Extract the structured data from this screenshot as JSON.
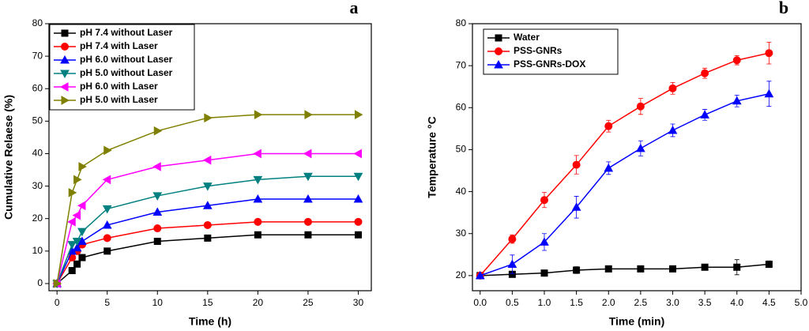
{
  "chart_data": [
    {
      "type": "line",
      "panel_label": "a",
      "x_label": "Time (h)",
      "y_label": "Cumulative Relaese (%)",
      "xlim": [
        -0.8,
        31.3
      ],
      "ylim": [
        -2.2,
        80
      ],
      "xticks": [
        0,
        5,
        10,
        15,
        20,
        25,
        30
      ],
      "yticks": [
        0,
        10,
        20,
        30,
        40,
        50,
        60,
        70,
        80
      ],
      "legend": "upper left",
      "x": [
        0,
        1.5,
        2,
        2.5,
        5,
        10,
        15,
        20,
        25,
        30
      ],
      "series": [
        {
          "name": "pH 7.4 without Laser",
          "color": "#000000",
          "marker": "square",
          "values": [
            0,
            4,
            6,
            8,
            10,
            13,
            14,
            15,
            15,
            15
          ]
        },
        {
          "name": "pH 7.4 with Laser",
          "color": "#ff0000",
          "marker": "circle",
          "values": [
            0,
            8,
            10,
            12,
            14,
            17,
            18,
            19,
            19,
            19
          ]
        },
        {
          "name": "pH 6.0 without Laser",
          "color": "#0000ff",
          "marker": "triangle-up",
          "values": [
            0,
            10,
            11,
            13,
            18,
            22,
            24,
            26,
            26,
            26
          ]
        },
        {
          "name": "pH 5.0 without Laser",
          "color": "#008080",
          "marker": "triangle-down",
          "values": [
            0,
            12,
            13,
            16,
            23,
            27,
            30,
            32,
            33,
            33
          ]
        },
        {
          "name": "pH 6.0 with Laser",
          "color": "#ff00ff",
          "marker": "triangle-left",
          "values": [
            0,
            19,
            21,
            24,
            32,
            36,
            38,
            40,
            40,
            40
          ]
        },
        {
          "name": "pH 5.0 with Laser",
          "color": "#808000",
          "marker": "triangle-right",
          "values": [
            0,
            28,
            32,
            36,
            41,
            47,
            51,
            52,
            52,
            52
          ]
        }
      ]
    },
    {
      "type": "line",
      "panel_label": "b",
      "x_label": "Time (min)",
      "y_label": "Temperature °C",
      "xlim": [
        -0.12,
        5
      ],
      "ylim": [
        16.4,
        80
      ],
      "xticks": [
        {
          "value": 0,
          "label": "0.0"
        },
        {
          "value": 0.5,
          "label": "0.5"
        },
        {
          "value": 1,
          "label": "1.0"
        },
        {
          "value": 1.5,
          "label": "1.5"
        },
        {
          "value": 2,
          "label": "2.0"
        },
        {
          "value": 2.5,
          "label": "2.5"
        },
        {
          "value": 3,
          "label": "3.0"
        },
        {
          "value": 3.5,
          "label": "3.5"
        },
        {
          "value": 4,
          "label": "4.0"
        },
        {
          "value": 4.5,
          "label": "4.5"
        },
        {
          "value": 5,
          "label": "5.0"
        }
      ],
      "yticks": [
        20,
        30,
        40,
        50,
        60,
        70,
        80
      ],
      "legend": "upper left",
      "x": [
        0,
        0.5,
        1,
        1.5,
        2,
        2.5,
        3,
        3.5,
        4,
        4.5
      ],
      "series": [
        {
          "name": "Water",
          "color": "#000000",
          "marker": "square",
          "values": [
            20,
            20.3,
            20.6,
            21.3,
            21.6,
            21.6,
            21.6,
            22,
            22,
            22.7
          ],
          "errors": [
            0.3,
            0.3,
            0.6,
            0.8,
            0.3,
            0.3,
            0.3,
            0.6,
            1.8,
            0.8
          ]
        },
        {
          "name": "PSS-GNRs",
          "color": "#ff0000",
          "marker": "circle",
          "values": [
            20,
            28.7,
            38,
            46.4,
            55.6,
            60.3,
            64.6,
            68.2,
            71.3,
            73
          ],
          "errors": [
            0,
            1,
            1.8,
            2.2,
            1.4,
            1.9,
            1.4,
            1.2,
            1.1,
            2.6
          ]
        },
        {
          "name": "PSS-GNRs-DOX",
          "color": "#0000ff",
          "marker": "triangle-up",
          "values": [
            20,
            22.7,
            28,
            36.3,
            45.6,
            50.3,
            54.6,
            58.3,
            61.6,
            63.3
          ],
          "errors": [
            0,
            2.2,
            2,
            2.6,
            1.5,
            1.8,
            1.5,
            1.3,
            1.4,
            3
          ]
        }
      ]
    }
  ]
}
